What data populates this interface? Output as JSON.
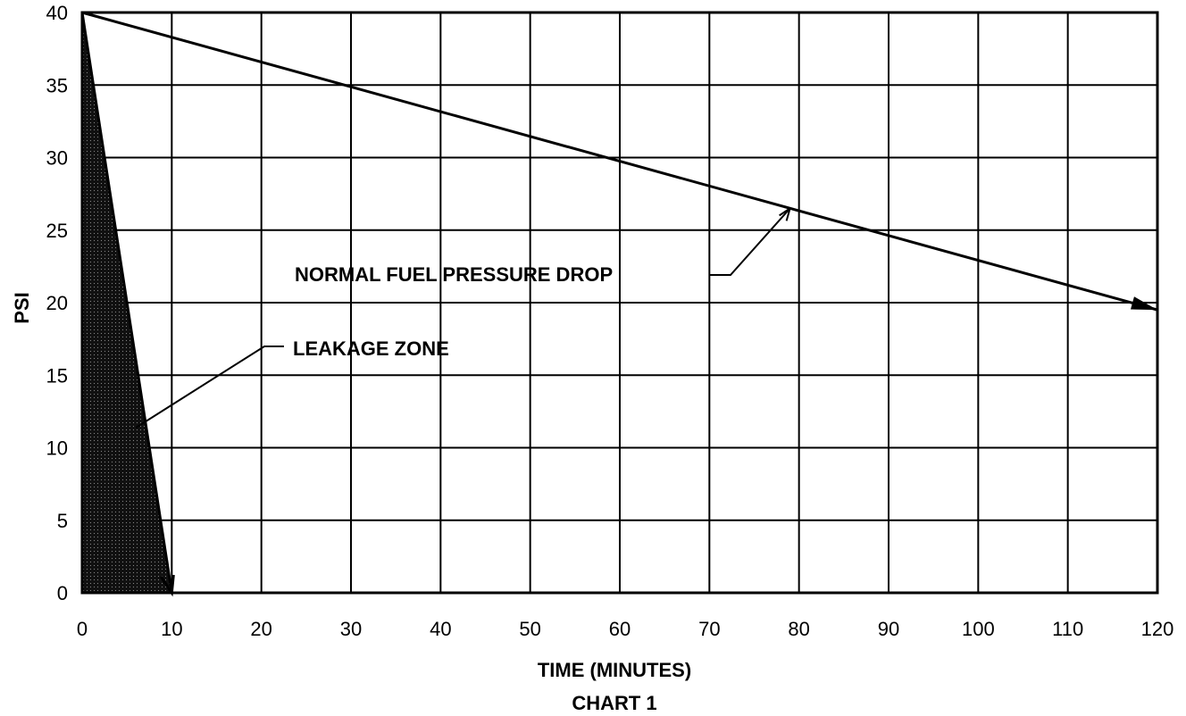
{
  "chart_data": {
    "type": "line",
    "title": "CHART 1",
    "xlabel": "TIME (MINUTES)",
    "ylabel": "PSI",
    "xlim": [
      0,
      120
    ],
    "ylim": [
      0,
      40
    ],
    "xticks": [
      0,
      10,
      20,
      30,
      40,
      50,
      60,
      70,
      80,
      90,
      100,
      110,
      120
    ],
    "yticks": [
      0,
      5,
      10,
      15,
      20,
      25,
      30,
      35,
      40
    ],
    "grid": true,
    "series": [
      {
        "name": "NORMAL FUEL PRESSURE DROP",
        "x": [
          0,
          120
        ],
        "y": [
          40,
          19.5
        ],
        "style": "arrow"
      },
      {
        "name": "LEAKAGE ZONE",
        "x": [
          0,
          0,
          10
        ],
        "y": [
          0,
          40,
          0
        ],
        "style": "shaded-area"
      }
    ],
    "annotations": [
      {
        "text": "NORMAL FUEL PRESSURE DROP",
        "points_to": [
          79,
          26.5
        ]
      },
      {
        "text": "LEAKAGE ZONE",
        "points_to": [
          6,
          12
        ]
      }
    ]
  }
}
